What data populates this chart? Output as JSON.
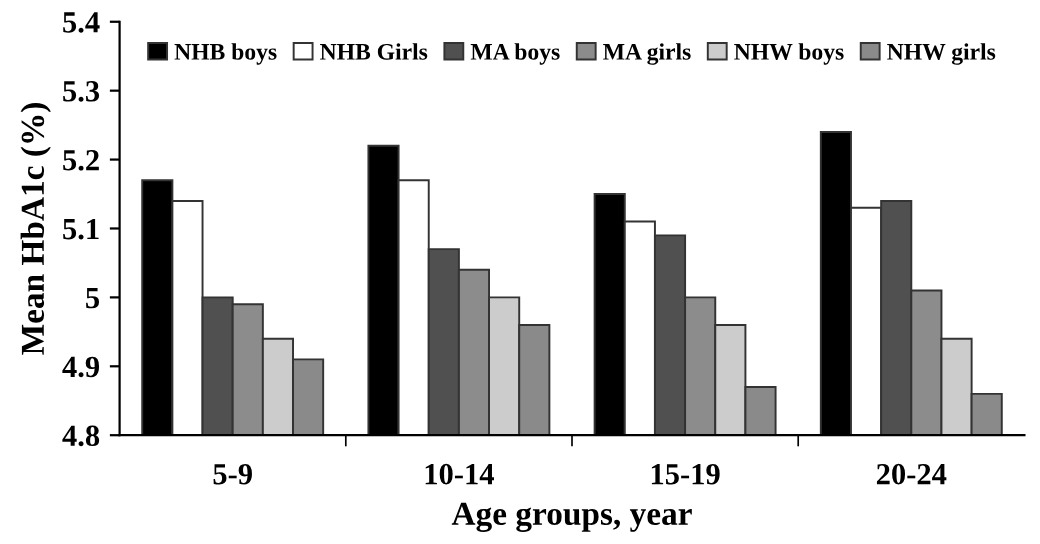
{
  "chart_data": {
    "type": "bar",
    "xlabel": "Age groups, year",
    "ylabel": "Mean HbA1c (%)",
    "categories": [
      "5-9",
      "10-14",
      "15-19",
      "20-24"
    ],
    "series": [
      {
        "name": "NHB boys",
        "color": "#000000",
        "values": [
          5.17,
          5.22,
          5.15,
          5.24
        ]
      },
      {
        "name": "NHB Girls",
        "color": "#ffffff",
        "values": [
          5.14,
          5.17,
          5.11,
          5.13
        ]
      },
      {
        "name": "MA boys",
        "color": "#505050",
        "values": [
          5.0,
          5.07,
          5.09,
          5.14
        ]
      },
      {
        "name": "MA girls",
        "color": "#8c8c8c",
        "values": [
          4.99,
          5.04,
          5.0,
          5.01
        ]
      },
      {
        "name": "NHW boys",
        "color": "#cccccc",
        "values": [
          4.94,
          5.0,
          4.96,
          4.94
        ]
      },
      {
        "name": "NHW girls",
        "color": "#8a8a8a",
        "values": [
          4.91,
          4.96,
          4.87,
          4.86
        ]
      }
    ],
    "ylim": [
      4.8,
      5.4
    ],
    "yticks": [
      4.8,
      4.9,
      5,
      5.1,
      5.2,
      5.3,
      5.4
    ],
    "grid": false,
    "legend": "top"
  }
}
